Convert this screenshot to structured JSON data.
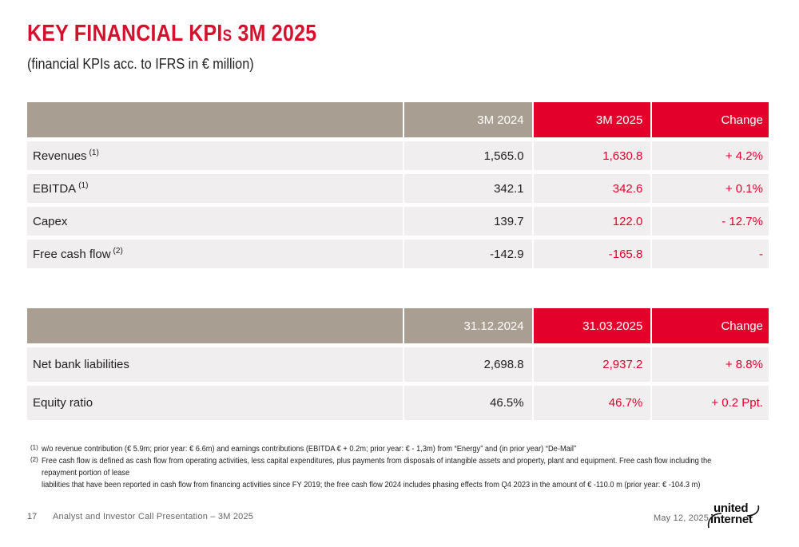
{
  "header": {
    "title_main": "KEY FINANCIAL KPI",
    "title_small": "S",
    "title_rest": " 3M 2025",
    "subtitle": "(financial KPIs acc. to IFRS in € million)"
  },
  "table1": {
    "headers": [
      "",
      "3M 2024",
      "3M 2025",
      "Change"
    ],
    "rows": [
      {
        "label": "Revenues",
        "note": "(1)",
        "v1": "1,565.0",
        "v2": "1,630.8",
        "v3": "+ 4.2%"
      },
      {
        "label": "EBITDA",
        "note": "(1)",
        "v1": "342.1",
        "v2": "342.6",
        "v3": "+ 0.1%"
      },
      {
        "label": "Capex",
        "note": "",
        "v1": "139.7",
        "v2": "122.0",
        "v3": "- 12.7%"
      },
      {
        "label": "Free cash flow",
        "note": "(2)",
        "v1": "-142.9",
        "v2": "-165.8",
        "v3": "-"
      }
    ]
  },
  "table2": {
    "headers": [
      "",
      "31.12.2024",
      "31.03.2025",
      "Change"
    ],
    "rows": [
      {
        "label": "Net bank liabilities",
        "v1": "2,698.8",
        "v2": "2,937.2",
        "v3": "+ 8.8%"
      },
      {
        "label": "Equity ratio",
        "v1": "46.5%",
        "v2": "46.7%",
        "v3": "+ 0.2 Ppt."
      }
    ]
  },
  "footnotes": [
    {
      "mark": "(1)",
      "text": "w/o revenue contribution (€ 5.9m; prior year: € 6.6m) and earnings contributions (EBITDA € + 0.2m; prior year: € - 1,3m) from “Energy” and (in prior year) “De-Mail”"
    },
    {
      "mark": "(2)",
      "text": "Free cash flow is defined as cash flow from operating activities, less capital expenditures, plus payments from disposals of intangible assets and property, plant and equipment. Free cash flow including the repayment portion of lease"
    },
    {
      "mark": "",
      "text": "liabilities that have been reported in cash flow from financing activities since FY 2019; the free cash flow 2024 includes phasing effects from Q4 2023 in the amount of € -110.0 m (prior year: € -104.3 m)"
    }
  ],
  "footer": {
    "page_number": "17",
    "presentation": "Analyst and Investor Call Presentation – 3M 2025",
    "date": "May 12, 2025",
    "logo_line1": "united",
    "logo_line2": "internet"
  }
}
